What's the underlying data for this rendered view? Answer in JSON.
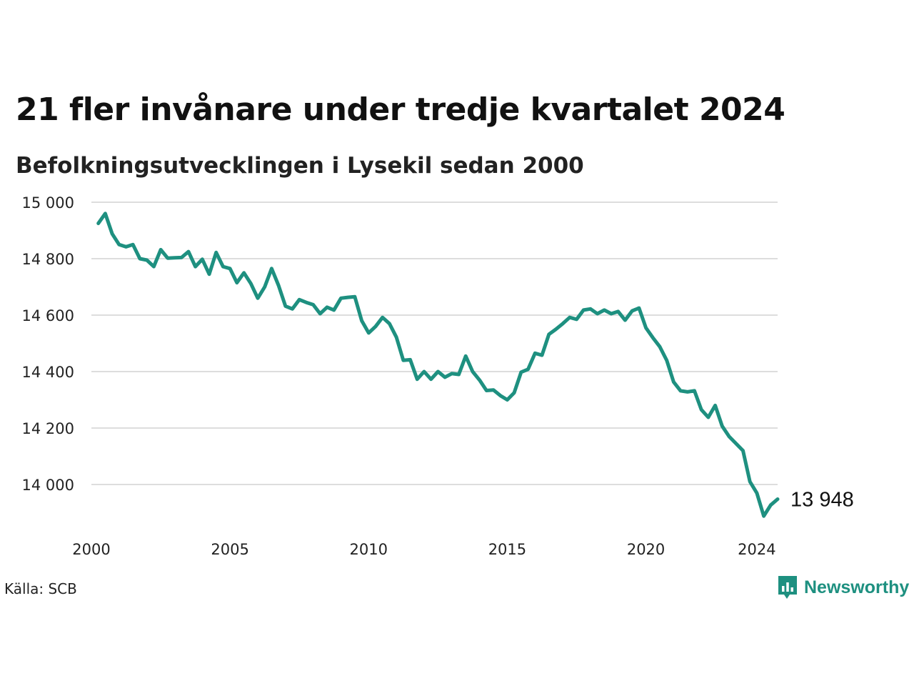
{
  "title": "21 fler invånare under tredje kvartalet 2024",
  "subtitle": "Befolkningsutvecklingen i Lysekil sedan 2000",
  "source": "Källa: SCB",
  "brand": "Newsworthy",
  "colors": {
    "line": "#1e9080",
    "grid": "#dddddd",
    "brand": "#1e9080"
  },
  "icons": {
    "brand_logo": "chart-bubble-icon"
  },
  "chart_data": {
    "type": "line",
    "title": "21 fler invånare under tredje kvartalet 2024",
    "subtitle": "Befolkningsutvecklingen i Lysekil sedan 2000",
    "xlabel": "",
    "ylabel": "",
    "xlim": [
      2000,
      2024.75
    ],
    "ylim": [
      13900,
      15000
    ],
    "x_ticks": [
      2000,
      2005,
      2010,
      2015,
      2020,
      2024
    ],
    "x_tick_labels": [
      "2000",
      "2005",
      "2010",
      "2015",
      "2020",
      "2024"
    ],
    "y_ticks": [
      14000,
      14200,
      14400,
      14600,
      14800,
      15000
    ],
    "y_tick_labels": [
      "14 000",
      "14 200",
      "14 400",
      "14 600",
      "14 800",
      "15 000"
    ],
    "grid": "horizontal",
    "end_label": "13 948",
    "series": [
      {
        "x_start": 2000.25,
        "x_step": 0.25,
        "values": [
          14925,
          14960,
          14888,
          14850,
          14842,
          14850,
          14800,
          14795,
          14772,
          14832,
          14802,
          14803,
          14804,
          14825,
          14772,
          14798,
          14745,
          14822,
          14772,
          14765,
          14715,
          14750,
          14712,
          14660,
          14700,
          14765,
          14705,
          14632,
          14622,
          14655,
          14645,
          14637,
          14605,
          14628,
          14618,
          14660,
          14663,
          14665,
          14580,
          14537,
          14560,
          14592,
          14570,
          14522,
          14440,
          14442,
          14373,
          14400,
          14373,
          14400,
          14380,
          14393,
          14390,
          14455,
          14400,
          14370,
          14333,
          14335,
          14315,
          14300,
          14325,
          14398,
          14408,
          14465,
          14458,
          14532,
          14550,
          14570,
          14592,
          14585,
          14618,
          14622,
          14605,
          14618,
          14605,
          14613,
          14582,
          14615,
          14625,
          14555,
          14520,
          14488,
          14440,
          14363,
          14332,
          14328,
          14332,
          14265,
          14238,
          14280,
          14207,
          14170,
          14145,
          14120,
          14010,
          13970,
          13888,
          13927,
          13948
        ]
      }
    ]
  }
}
